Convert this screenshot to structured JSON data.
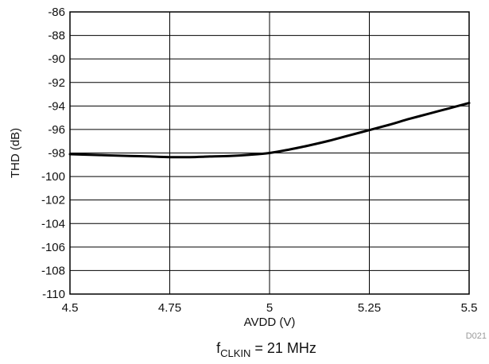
{
  "chart_data": {
    "type": "line",
    "xlabel": "AVDD (V)",
    "ylabel": "THD (dB)",
    "xlim": [
      4.5,
      5.5
    ],
    "ylim": [
      -110,
      -86
    ],
    "x_ticks": [
      4.5,
      4.75,
      5,
      5.25,
      5.5
    ],
    "x_tick_labels": [
      "4.5",
      "4.75",
      "5",
      "5.25",
      "5.5"
    ],
    "y_ticks": [
      -110,
      -108,
      -106,
      -104,
      -102,
      -100,
      -98,
      -96,
      -94,
      -92,
      -90,
      -88,
      -86
    ],
    "y_tick_labels": [
      "-110",
      "-108",
      "-106",
      "-104",
      "-102",
      "-100",
      "-98",
      "-96",
      "-94",
      "-92",
      "-90",
      "-88",
      "-86"
    ],
    "x_grid": "on",
    "y_grid": "on",
    "figure_code": "D021",
    "caption": {
      "main": "f",
      "subscript": "CLKIN",
      "rest": " = 21 MHz"
    },
    "series": [
      {
        "x": [
          4.5,
          4.55,
          4.6,
          4.65,
          4.7,
          4.75,
          4.8,
          4.85,
          4.9,
          4.95,
          5.0,
          5.05,
          5.1,
          5.15,
          5.2,
          5.25,
          5.3,
          5.35,
          5.4,
          5.45,
          5.5
        ],
        "y": [
          -98.1,
          -98.15,
          -98.2,
          -98.25,
          -98.3,
          -98.35,
          -98.35,
          -98.3,
          -98.25,
          -98.15,
          -98.0,
          -97.7,
          -97.35,
          -96.95,
          -96.5,
          -96.05,
          -95.6,
          -95.1,
          -94.65,
          -94.2,
          -93.75
        ]
      }
    ]
  }
}
